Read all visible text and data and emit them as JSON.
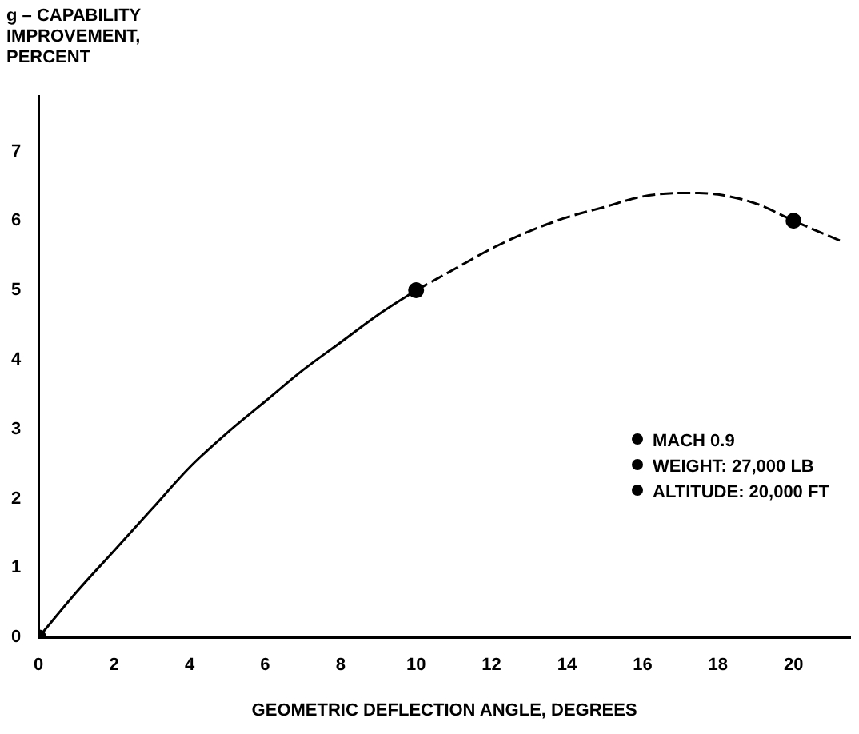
{
  "chart_data": {
    "type": "line",
    "ylabel": "g – CAPABILITY\nIMPROVEMENT,\nPERCENT",
    "xlabel": "GEOMETRIC DEFLECTION ANGLE, DEGREES",
    "xlim": [
      0,
      21.5
    ],
    "xticks": [
      0,
      2,
      4,
      6,
      8,
      10,
      12,
      14,
      16,
      18,
      20
    ],
    "ylim": [
      0,
      7.8
    ],
    "yticks": [
      0,
      1,
      2,
      3,
      4,
      5,
      6,
      7
    ],
    "grid": false,
    "legend": false,
    "series": [
      {
        "color": "#000000",
        "line_style": "solid",
        "marker": "none",
        "x": [
          0,
          1,
          2,
          3,
          4,
          5,
          6,
          7,
          8,
          9,
          10
        ],
        "values": [
          0,
          0.65,
          1.25,
          1.85,
          2.45,
          2.95,
          3.4,
          3.85,
          4.25,
          4.65,
          5.0
        ]
      },
      {
        "color": "#000000",
        "line_style": "dashed",
        "marker": "none",
        "x": [
          10,
          11,
          12,
          13,
          14,
          15,
          16,
          17,
          17.5,
          18,
          19,
          20,
          21.3
        ],
        "values": [
          5.0,
          5.3,
          5.6,
          5.85,
          6.05,
          6.2,
          6.35,
          6.4,
          6.4,
          6.38,
          6.25,
          6.0,
          5.7
        ]
      },
      {
        "type": "scatter",
        "color": "#000000",
        "marker": "circle",
        "x": [
          0,
          10,
          20
        ],
        "values": [
          0,
          5.0,
          6.0
        ]
      }
    ],
    "annotations": [
      "MACH 0.9",
      "WEIGHT: 27,000 LB",
      "ALTITUDE: 20,000 FT"
    ]
  }
}
